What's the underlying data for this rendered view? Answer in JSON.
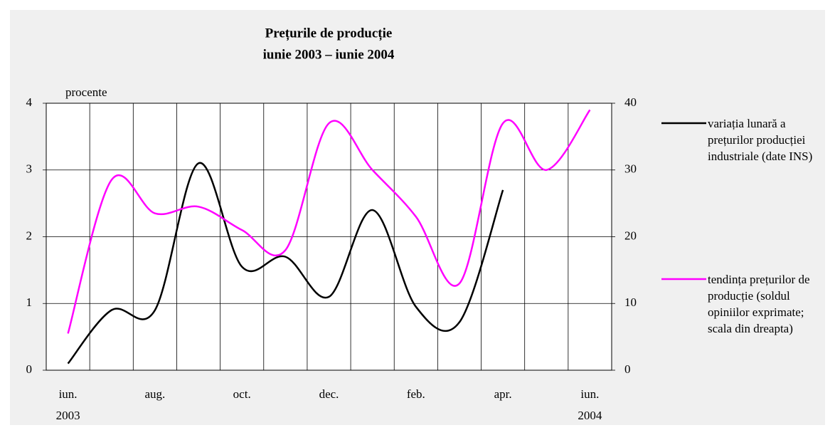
{
  "chart_data": {
    "type": "line",
    "title": "Prețurile de producție",
    "subtitle": "iunie 2003 – iunie 2004",
    "y_label": "procente",
    "categories": [
      "iun.",
      null,
      "aug.",
      null,
      "oct.",
      null,
      "dec.",
      null,
      "feb.",
      null,
      "apr.",
      null,
      "iun."
    ],
    "years": [
      "2003",
      null,
      null,
      null,
      null,
      null,
      null,
      null,
      null,
      null,
      null,
      null,
      "2004"
    ],
    "ylim": [
      0,
      4
    ],
    "yticks": [
      0,
      1,
      2,
      3,
      4
    ],
    "y2lim": [
      0,
      40
    ],
    "y2ticks": [
      0,
      10,
      20,
      30,
      40
    ],
    "grid": true,
    "legend": "right",
    "series": [
      {
        "name": "variația lunară a prețurilor producției industriale (date INS)",
        "color": "#000000",
        "values": [
          0.1,
          0.9,
          0.9,
          3.1,
          1.55,
          1.7,
          1.1,
          2.4,
          0.95,
          0.72,
          2.7,
          null,
          null
        ]
      },
      {
        "name": "tendința prețurilor de producție (soldul opiniilor exprimate; scala din dreapta)",
        "color": "#ff00ff",
        "axis": "y2",
        "values": [
          5.5,
          28.5,
          23.5,
          24.5,
          21,
          18,
          37,
          30,
          23,
          13,
          37,
          30,
          39
        ]
      }
    ]
  }
}
